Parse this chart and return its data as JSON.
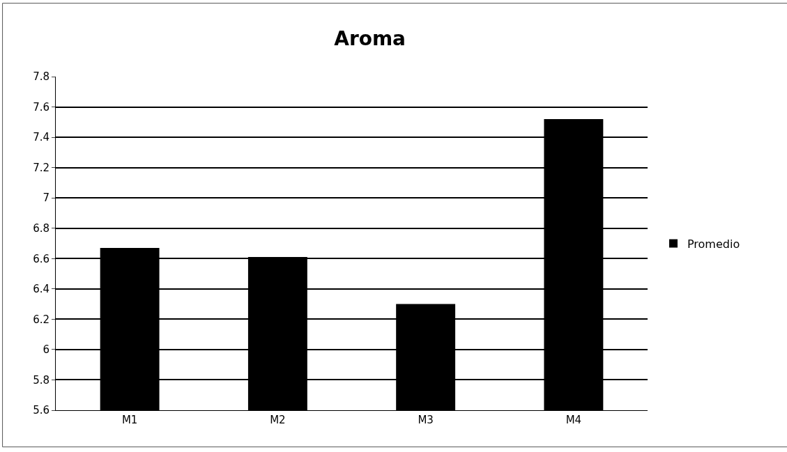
{
  "chart_data": {
    "type": "bar",
    "title": "Aroma",
    "categories": [
      "M1",
      "M2",
      "M3",
      "M4"
    ],
    "series": [
      {
        "name": "Promedio",
        "color": "#000000",
        "values": [
          6.67,
          6.61,
          6.3,
          7.52
        ]
      }
    ],
    "ylim": [
      5.6,
      7.8
    ],
    "yticks": [
      5.6,
      5.8,
      6,
      6.2,
      6.4,
      6.6,
      6.8,
      7,
      7.2,
      7.4,
      7.6,
      7.8
    ],
    "grid": "y",
    "legend": "right"
  }
}
